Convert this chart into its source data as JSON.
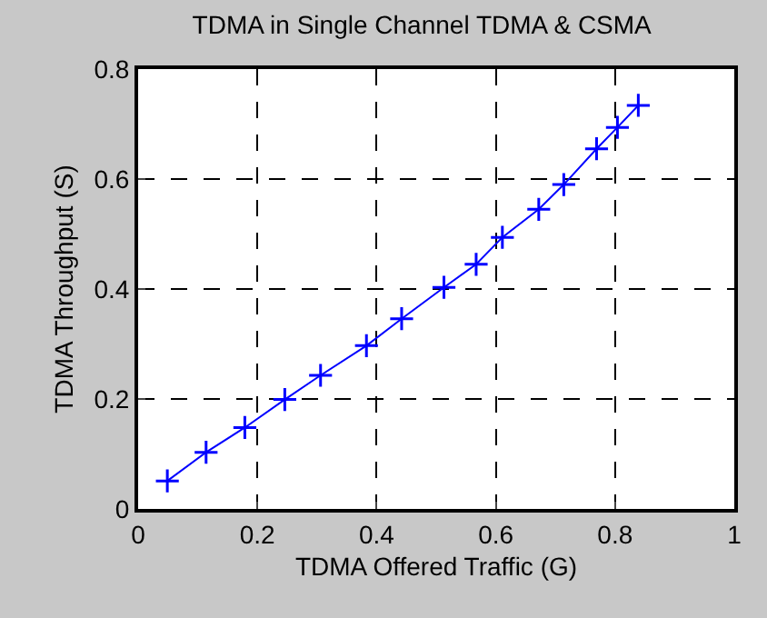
{
  "chart_data": {
    "type": "line",
    "title": "TDMA in Single Channel TDMA & CSMA",
    "xlabel": "TDMA Offered Traffic (G)",
    "ylabel": "TDMA Throughput (S)",
    "x": [
      0.049,
      0.114,
      0.179,
      0.246,
      0.306,
      0.383,
      0.442,
      0.513,
      0.567,
      0.611,
      0.672,
      0.714,
      0.769,
      0.804,
      0.839
    ],
    "series": [
      {
        "color": "#0000ff",
        "values": [
          0.051,
          0.103,
          0.148,
          0.199,
          0.243,
          0.297,
          0.346,
          0.403,
          0.445,
          0.494,
          0.545,
          0.59,
          0.655,
          0.694,
          0.734
        ]
      }
    ],
    "xlim": [
      0,
      1
    ],
    "xticks": [
      0,
      0.2,
      0.4,
      0.6,
      0.8,
      1
    ],
    "ylim": [
      0,
      0.8
    ],
    "yticks": [
      0,
      0.2,
      0.4,
      0.6,
      0.8
    ],
    "grid": true,
    "marker": "cross",
    "line_style": "solid"
  }
}
